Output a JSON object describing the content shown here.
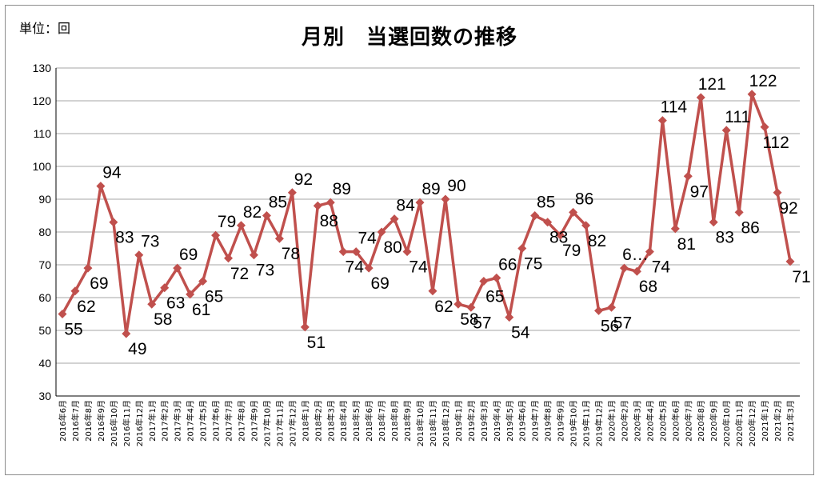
{
  "unit_label": "単位：回",
  "colors": {
    "series": "#c0504d",
    "grid": "#a6a6a6",
    "axis": "#000000"
  },
  "chart_data": {
    "type": "line",
    "title": "月別　当選回数の推移",
    "xlabel": "",
    "ylabel": "",
    "ylim": [
      30,
      130
    ],
    "yticks": [
      30,
      40,
      50,
      60,
      70,
      80,
      90,
      100,
      110,
      120,
      130
    ],
    "grid": true,
    "legend": "none",
    "categories": [
      "2016年6月",
      "2016年7月",
      "2016年8月",
      "2016年9月",
      "2016年10月",
      "2016年11月",
      "2016年12月",
      "2017年1月",
      "2017年2月",
      "2017年3月",
      "2017年4月",
      "2017年5月",
      "2017年6月",
      "2017年7月",
      "2017年8月",
      "2017年9月",
      "2017年10月",
      "2017年11月",
      "2017年12月",
      "2018年1月",
      "2018年2月",
      "2018年3月",
      "2018年4月",
      "2018年5月",
      "2018年6月",
      "2018年7月",
      "2018年8月",
      "2018年9月",
      "2018年10月",
      "2018年11月",
      "2018年12月",
      "2019年1月",
      "2019年2月",
      "2019年3月",
      "2019年4月",
      "2019年5月",
      "2019年6月",
      "2019年7月",
      "2019年8月",
      "2019年9月",
      "2019年10月",
      "2019年11月",
      "2019年12月",
      "2020年1月",
      "2020年2月",
      "2020年3月",
      "2020年4月",
      "2020年5月",
      "2020年6月",
      "2020年7月",
      "2020年8月",
      "2020年9月",
      "2020年10月",
      "2020年11月",
      "2020年12月",
      "2021年1月",
      "2021年2月",
      "2021年3月"
    ],
    "series": [
      {
        "values": [
          55,
          62,
          69,
          94,
          83,
          49,
          73,
          58,
          63,
          69,
          61,
          65,
          79,
          72,
          82,
          73,
          85,
          78,
          92,
          51,
          88,
          89,
          74,
          74,
          69,
          80,
          84,
          74,
          89,
          62,
          90,
          58,
          57,
          65,
          66,
          54,
          75,
          85,
          83,
          79,
          86,
          82,
          56,
          57,
          69,
          68,
          74,
          114,
          81,
          97,
          121,
          83,
          111,
          86,
          122,
          112,
          92,
          71
        ],
        "labels": [
          "55",
          "62",
          "69",
          "94",
          "83",
          "49",
          "73",
          "58",
          "63",
          "69",
          "61",
          "65",
          "79",
          "72",
          "82",
          "73",
          "85",
          "78",
          "92",
          "51",
          "88",
          "89",
          "74",
          "74",
          "69",
          "80",
          "84",
          "74",
          "89",
          "62",
          "90",
          "58",
          "57",
          "65",
          "66",
          "54",
          "75",
          "85",
          "83",
          "79",
          "86",
          "82",
          "56",
          "57",
          "6…",
          "68",
          "74",
          "114",
          "81",
          "97",
          "121",
          "83",
          "111",
          "86",
          "122",
          "112",
          "92",
          "71"
        ]
      }
    ]
  }
}
